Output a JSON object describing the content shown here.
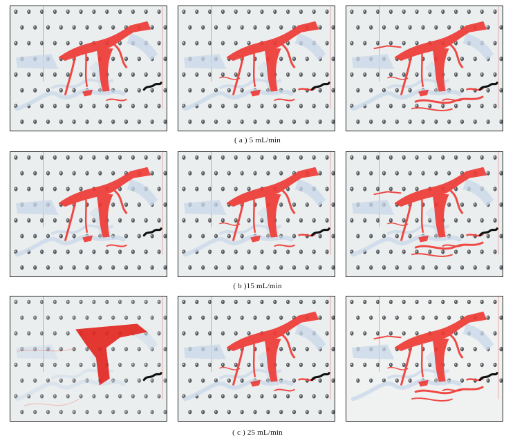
{
  "figure": {
    "captions": [
      "( a ) 5 mL/min",
      "( b )15 mL/min",
      "( c ) 25 mL/min"
    ],
    "rows": [
      {
        "panels": [
          {
            "spread": "small"
          },
          {
            "spread": "medium"
          },
          {
            "spread": "large"
          }
        ]
      },
      {
        "panels": [
          {
            "spread": "small"
          },
          {
            "spread": "medium"
          },
          {
            "spread": "large"
          }
        ]
      },
      {
        "panels": [
          {
            "spread": "blurred"
          },
          {
            "spread": "medium"
          },
          {
            "spread": "wide"
          }
        ]
      }
    ],
    "colors": {
      "dye": "#ef3b36",
      "dye_dark": "#e2231d",
      "gel": "#c9d8ea",
      "background": "#e9ecec",
      "holes": "#3e4246",
      "needle": "#111111",
      "pipe": "#e05555"
    }
  }
}
